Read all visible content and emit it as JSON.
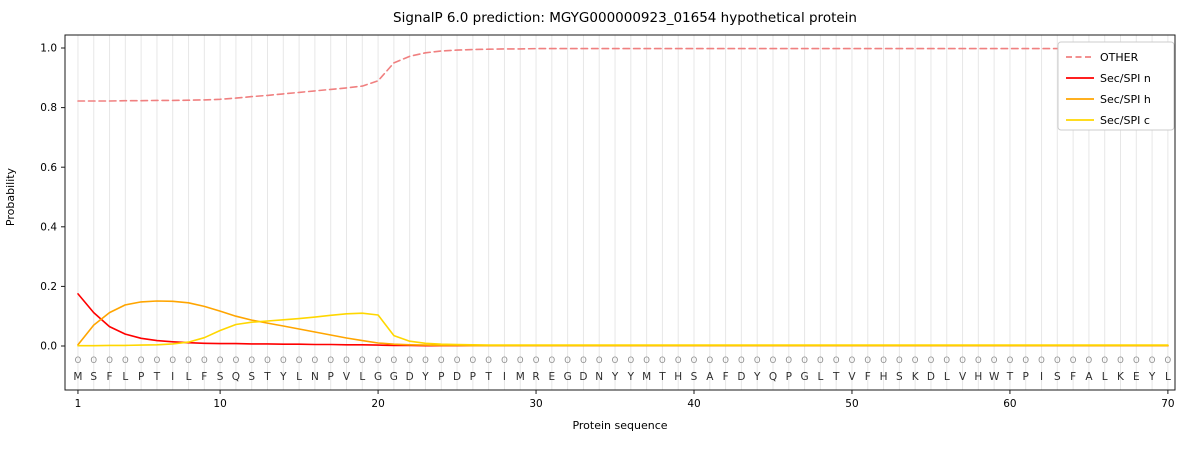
{
  "chart_data": {
    "type": "line",
    "title": "SignalP 6.0 prediction: MGYG000000923_01654 hypothetical protein",
    "xlabel": "Protein sequence",
    "ylabel": "Probability",
    "ylim": [
      0.0,
      1.0
    ],
    "yticks": [
      0.0,
      0.2,
      0.4,
      0.6,
      0.8,
      1.0
    ],
    "xticks": [
      1,
      10,
      20,
      30,
      40,
      50,
      60,
      70
    ],
    "n_positions": 70,
    "grid": "vertical line per residue position",
    "legend_position": "upper right",
    "sequence": "MSFLPTILFSQSTYLNPVLGGDYPDPTIMREGDNYYMTHSAFDYQPGLTVFHSKDLVHWTPISFALKEYL",
    "predicted_labels": "OOOOOOOOOOOOOOOOOOOOOOOOOOOOOOOOOOOOOOOOOOOOOOOOOOOOOOOOOOOOOOOOOOOOOO",
    "series": [
      {
        "name": "OTHER",
        "color": "#f08080",
        "dashed": true,
        "values": [
          0.822,
          0.822,
          0.822,
          0.823,
          0.823,
          0.824,
          0.824,
          0.825,
          0.826,
          0.828,
          0.832,
          0.837,
          0.841,
          0.846,
          0.851,
          0.856,
          0.861,
          0.866,
          0.872,
          0.89,
          0.95,
          0.972,
          0.984,
          0.99,
          0.993,
          0.995,
          0.996,
          0.997,
          0.997,
          0.998,
          0.998,
          0.998,
          0.998,
          0.998,
          0.998,
          0.998,
          0.998,
          0.998,
          0.998,
          0.998,
          0.998,
          0.998,
          0.998,
          0.998,
          0.998,
          0.998,
          0.998,
          0.998,
          0.998,
          0.998,
          0.998,
          0.998,
          0.998,
          0.998,
          0.998,
          0.998,
          0.998,
          0.998,
          0.998,
          0.998,
          0.998,
          0.998,
          0.998,
          0.998,
          0.998,
          0.998,
          0.998,
          0.998,
          0.998,
          0.998
        ]
      },
      {
        "name": "Sec/SPI n",
        "color": "#ff0000",
        "dashed": false,
        "values": [
          0.175,
          0.112,
          0.065,
          0.04,
          0.026,
          0.018,
          0.014,
          0.011,
          0.009,
          0.008,
          0.008,
          0.007,
          0.007,
          0.006,
          0.006,
          0.005,
          0.005,
          0.004,
          0.004,
          0.003,
          0.002,
          0.002,
          0.001,
          0.001,
          0.001,
          0.001,
          0.001,
          0.001,
          0.001,
          0.001,
          0.001,
          0.001,
          0.001,
          0.001,
          0.001,
          0.001,
          0.001,
          0.001,
          0.001,
          0.001,
          0.001,
          0.001,
          0.001,
          0.001,
          0.001,
          0.001,
          0.001,
          0.001,
          0.001,
          0.001,
          0.001,
          0.001,
          0.001,
          0.001,
          0.001,
          0.001,
          0.001,
          0.001,
          0.001,
          0.001,
          0.001,
          0.001,
          0.001,
          0.001,
          0.001,
          0.001,
          0.001,
          0.001,
          0.001,
          0.001
        ]
      },
      {
        "name": "Sec/SPI h",
        "color": "#ffa500",
        "dashed": false,
        "values": [
          0.004,
          0.07,
          0.112,
          0.138,
          0.148,
          0.151,
          0.15,
          0.145,
          0.133,
          0.117,
          0.1,
          0.087,
          0.077,
          0.067,
          0.057,
          0.047,
          0.037,
          0.027,
          0.018,
          0.01,
          0.006,
          0.004,
          0.003,
          0.002,
          0.002,
          0.001,
          0.001,
          0.001,
          0.001,
          0.001,
          0.001,
          0.001,
          0.001,
          0.001,
          0.001,
          0.001,
          0.001,
          0.001,
          0.001,
          0.001,
          0.001,
          0.001,
          0.001,
          0.001,
          0.001,
          0.001,
          0.001,
          0.001,
          0.001,
          0.001,
          0.001,
          0.001,
          0.001,
          0.001,
          0.001,
          0.001,
          0.001,
          0.001,
          0.001,
          0.001,
          0.001,
          0.001,
          0.001,
          0.001,
          0.001,
          0.001,
          0.001,
          0.001,
          0.001,
          0.001
        ]
      },
      {
        "name": "Sec/SPI c",
        "color": "#ffd700",
        "dashed": false,
        "values": [
          0.001,
          0.001,
          0.002,
          0.002,
          0.003,
          0.004,
          0.007,
          0.013,
          0.028,
          0.052,
          0.072,
          0.08,
          0.084,
          0.088,
          0.092,
          0.097,
          0.103,
          0.108,
          0.11,
          0.104,
          0.035,
          0.016,
          0.009,
          0.006,
          0.005,
          0.004,
          0.003,
          0.003,
          0.003,
          0.003,
          0.003,
          0.003,
          0.003,
          0.003,
          0.003,
          0.003,
          0.003,
          0.003,
          0.003,
          0.003,
          0.003,
          0.003,
          0.003,
          0.003,
          0.003,
          0.003,
          0.003,
          0.003,
          0.003,
          0.003,
          0.003,
          0.003,
          0.003,
          0.003,
          0.003,
          0.003,
          0.003,
          0.003,
          0.003,
          0.003,
          0.003,
          0.003,
          0.003,
          0.003,
          0.003,
          0.003,
          0.003,
          0.003,
          0.003,
          0.003
        ]
      }
    ]
  }
}
